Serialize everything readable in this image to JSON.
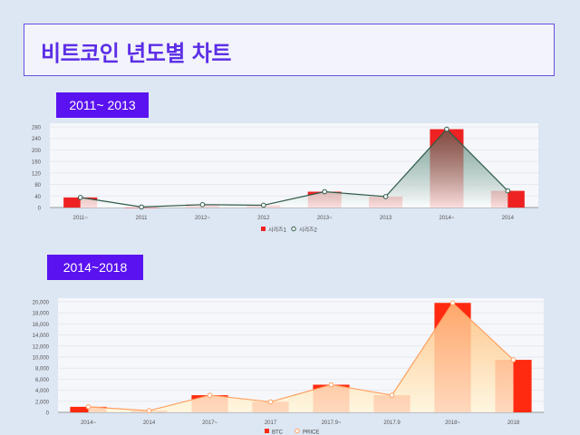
{
  "page_title": "비트코인 년도별 차트",
  "chart_data": [
    {
      "type": "bar",
      "badge": "2011~ 2013",
      "categories": [
        "2011~",
        "2011",
        "2012~",
        "2012",
        "2013~",
        "2013",
        "2014~",
        "2014"
      ],
      "series": [
        {
          "name": "시리즈1",
          "type": "bar",
          "color": "#ee2222",
          "values": [
            35,
            2,
            10,
            8,
            55,
            38,
            272,
            58
          ]
        },
        {
          "name": "시리즈2",
          "type": "area-line",
          "color": "#2e5a48",
          "values": [
            35,
            2,
            10,
            8,
            55,
            38,
            272,
            58
          ]
        }
      ],
      "yticks": [
        0,
        40,
        80,
        120,
        160,
        200,
        240,
        280
      ],
      "ylim": [
        0,
        280
      ],
      "legend": "bottom-center"
    },
    {
      "type": "bar",
      "badge": "2014~2018",
      "categories": [
        "2014~",
        "2014",
        "2017~",
        "2017",
        "2017.9~",
        "2017.9",
        "2018~",
        "2018"
      ],
      "series": [
        {
          "name": "BTC",
          "type": "bar",
          "color": "#ff2a10",
          "values": [
            1000,
            300,
            3100,
            1900,
            5000,
            3100,
            19800,
            9500
          ]
        },
        {
          "name": "PRICE",
          "type": "area-line",
          "color": "#ffa060",
          "values": [
            1000,
            300,
            3100,
            1900,
            5000,
            3100,
            19800,
            9500
          ]
        }
      ],
      "yticks": [
        "0",
        "2,000",
        "4,000",
        "6,000",
        "8,000",
        "10,000",
        "12,000",
        "14,000",
        "16,000",
        "18,000",
        "20,000"
      ],
      "ylim": [
        0,
        20000
      ],
      "legend": "bottom-center"
    }
  ]
}
